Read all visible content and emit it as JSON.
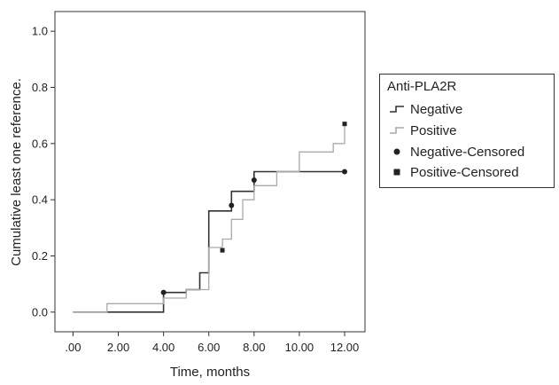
{
  "chart_data": {
    "type": "line",
    "xlabel": "Time, months",
    "ylabel": "Cumulative least one reference.",
    "xlim": [
      -0.8,
      12.9
    ],
    "ylim": [
      -0.07,
      1.07
    ],
    "x_ticks": [
      0,
      2,
      4,
      6,
      8,
      10,
      12
    ],
    "x_tick_labels": [
      ".00",
      "2.00",
      "4.00",
      "6.00",
      "8.00",
      "10.00",
      "12.00"
    ],
    "y_ticks": [
      0,
      0.2,
      0.4,
      0.6,
      0.8,
      1.0
    ],
    "y_tick_labels": [
      "0.0",
      "0.2",
      "0.4",
      "0.6",
      "0.8",
      "1.0"
    ],
    "grid": false,
    "legend_position": "right",
    "legend_title": "Anti-PLA2R",
    "series": [
      {
        "name": "Negative",
        "color": "#333333",
        "x": [
          0,
          4,
          4,
          5,
          5,
          5.6,
          5.6,
          6,
          6,
          7,
          7,
          8,
          8,
          12
        ],
        "y": [
          0,
          0,
          0.07,
          0.07,
          0.08,
          0.08,
          0.14,
          0.14,
          0.36,
          0.36,
          0.43,
          0.43,
          0.5,
          0.5
        ]
      },
      {
        "name": "Positive",
        "color": "#aaaaaa",
        "x": [
          0,
          1.5,
          1.5,
          3.2,
          3.2,
          4,
          4,
          5,
          5,
          6,
          6,
          6.6,
          6.6,
          7,
          7,
          7.5,
          7.5,
          8,
          8,
          9,
          9,
          10,
          10,
          11.5,
          11.5,
          12,
          12
        ],
        "y": [
          0,
          0,
          0.03,
          0.03,
          0.03,
          0.03,
          0.05,
          0.05,
          0.08,
          0.08,
          0.23,
          0.23,
          0.26,
          0.26,
          0.33,
          0.33,
          0.4,
          0.4,
          0.45,
          0.45,
          0.5,
          0.5,
          0.57,
          0.57,
          0.6,
          0.6,
          0.67
        ]
      }
    ],
    "censored": [
      {
        "name": "Negative-Censored",
        "x": [
          4,
          7,
          8,
          12
        ],
        "y": [
          0.07,
          0.38,
          0.47,
          0.5
        ]
      },
      {
        "name": "Positive-Censored",
        "x": [
          6.6,
          12
        ],
        "y": [
          0.22,
          0.67
        ]
      }
    ]
  }
}
